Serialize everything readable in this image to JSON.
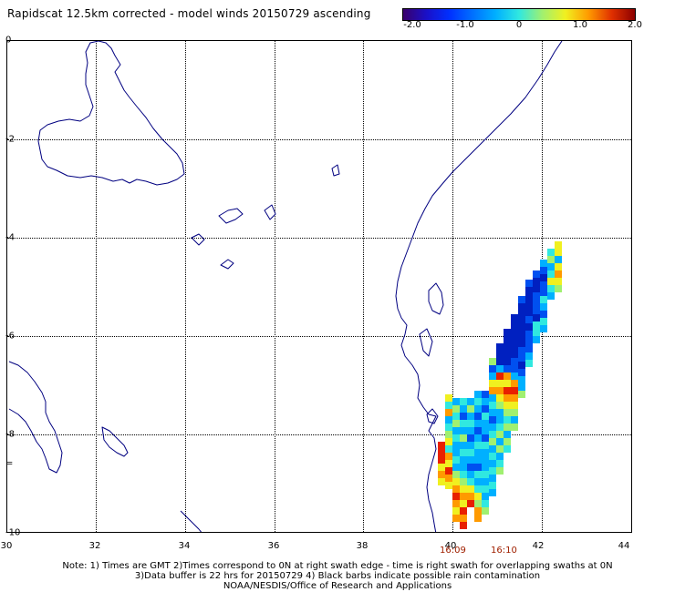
{
  "title": "Rapidscat 12.5km corrected - model winds 20150729 ascending",
  "colorbar": {
    "tick_labels": [
      "-2.0",
      "-1.0",
      "0",
      "1.0",
      "2.0"
    ],
    "range": [
      -2.0,
      2.0
    ]
  },
  "map": {
    "lon_range": [
      30,
      44
    ],
    "lat_range": [
      -10,
      0
    ],
    "lon_labels": [
      "30",
      "32",
      "34",
      "36",
      "38",
      "40",
      "42",
      "44"
    ],
    "lat_labels": [
      "0",
      "-2",
      "-4",
      "-6",
      "-8",
      "=",
      "-10"
    ],
    "grid": "dotted",
    "coastline_color": "#000080"
  },
  "swath_times": [
    "16:09",
    "16:10"
  ],
  "notes": {
    "line1": "Note: 1) Times are GMT 2)Times correspond to 0N at right swath edge - time is right swath for overlapping swaths at 0N",
    "line2": "3)Data buffer is 22 hrs for 20150729 4) Black barbs indicate possible rain contamination",
    "credit": "NOAA/NESDIS/Office of Research and Applications"
  }
}
